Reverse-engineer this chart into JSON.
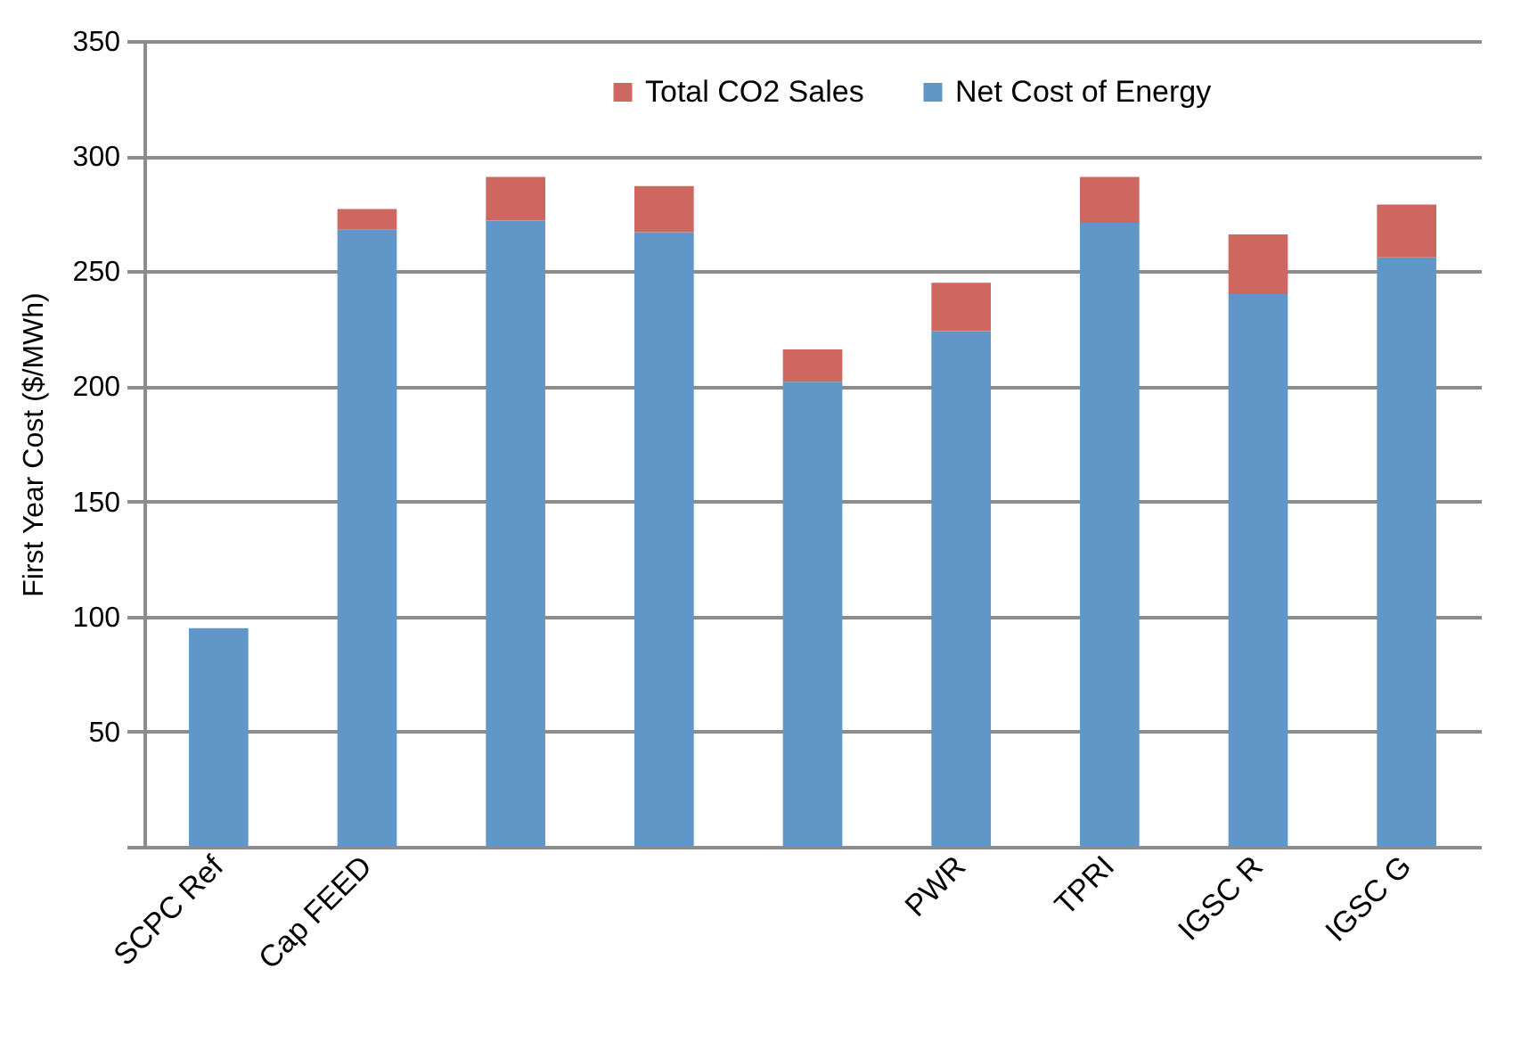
{
  "chart_data": {
    "type": "bar",
    "stacked": true,
    "ylabel": "First Year Cost ($/MWh)",
    "categories": [
      "SCPC Ref",
      "Cap FEED",
      null,
      null,
      null,
      "PWR",
      "TPRI",
      "IGSC R",
      "IGSC G"
    ],
    "series": [
      {
        "name": "Net Cost of Energy",
        "color": "#6096c8",
        "values": [
          95,
          268,
          272,
          267,
          202,
          224,
          271,
          240,
          256
        ]
      },
      {
        "name": "Total CO2 Sales",
        "color": "#cd6760",
        "values": [
          0,
          9,
          19,
          20,
          14,
          21,
          20,
          26,
          23
        ]
      }
    ],
    "ylim": [
      0,
      350
    ],
    "yticks": [
      {
        "value": 0,
        "label": null
      },
      50,
      100,
      150,
      200,
      250,
      300,
      350
    ],
    "grid": "y",
    "legend": "top"
  }
}
